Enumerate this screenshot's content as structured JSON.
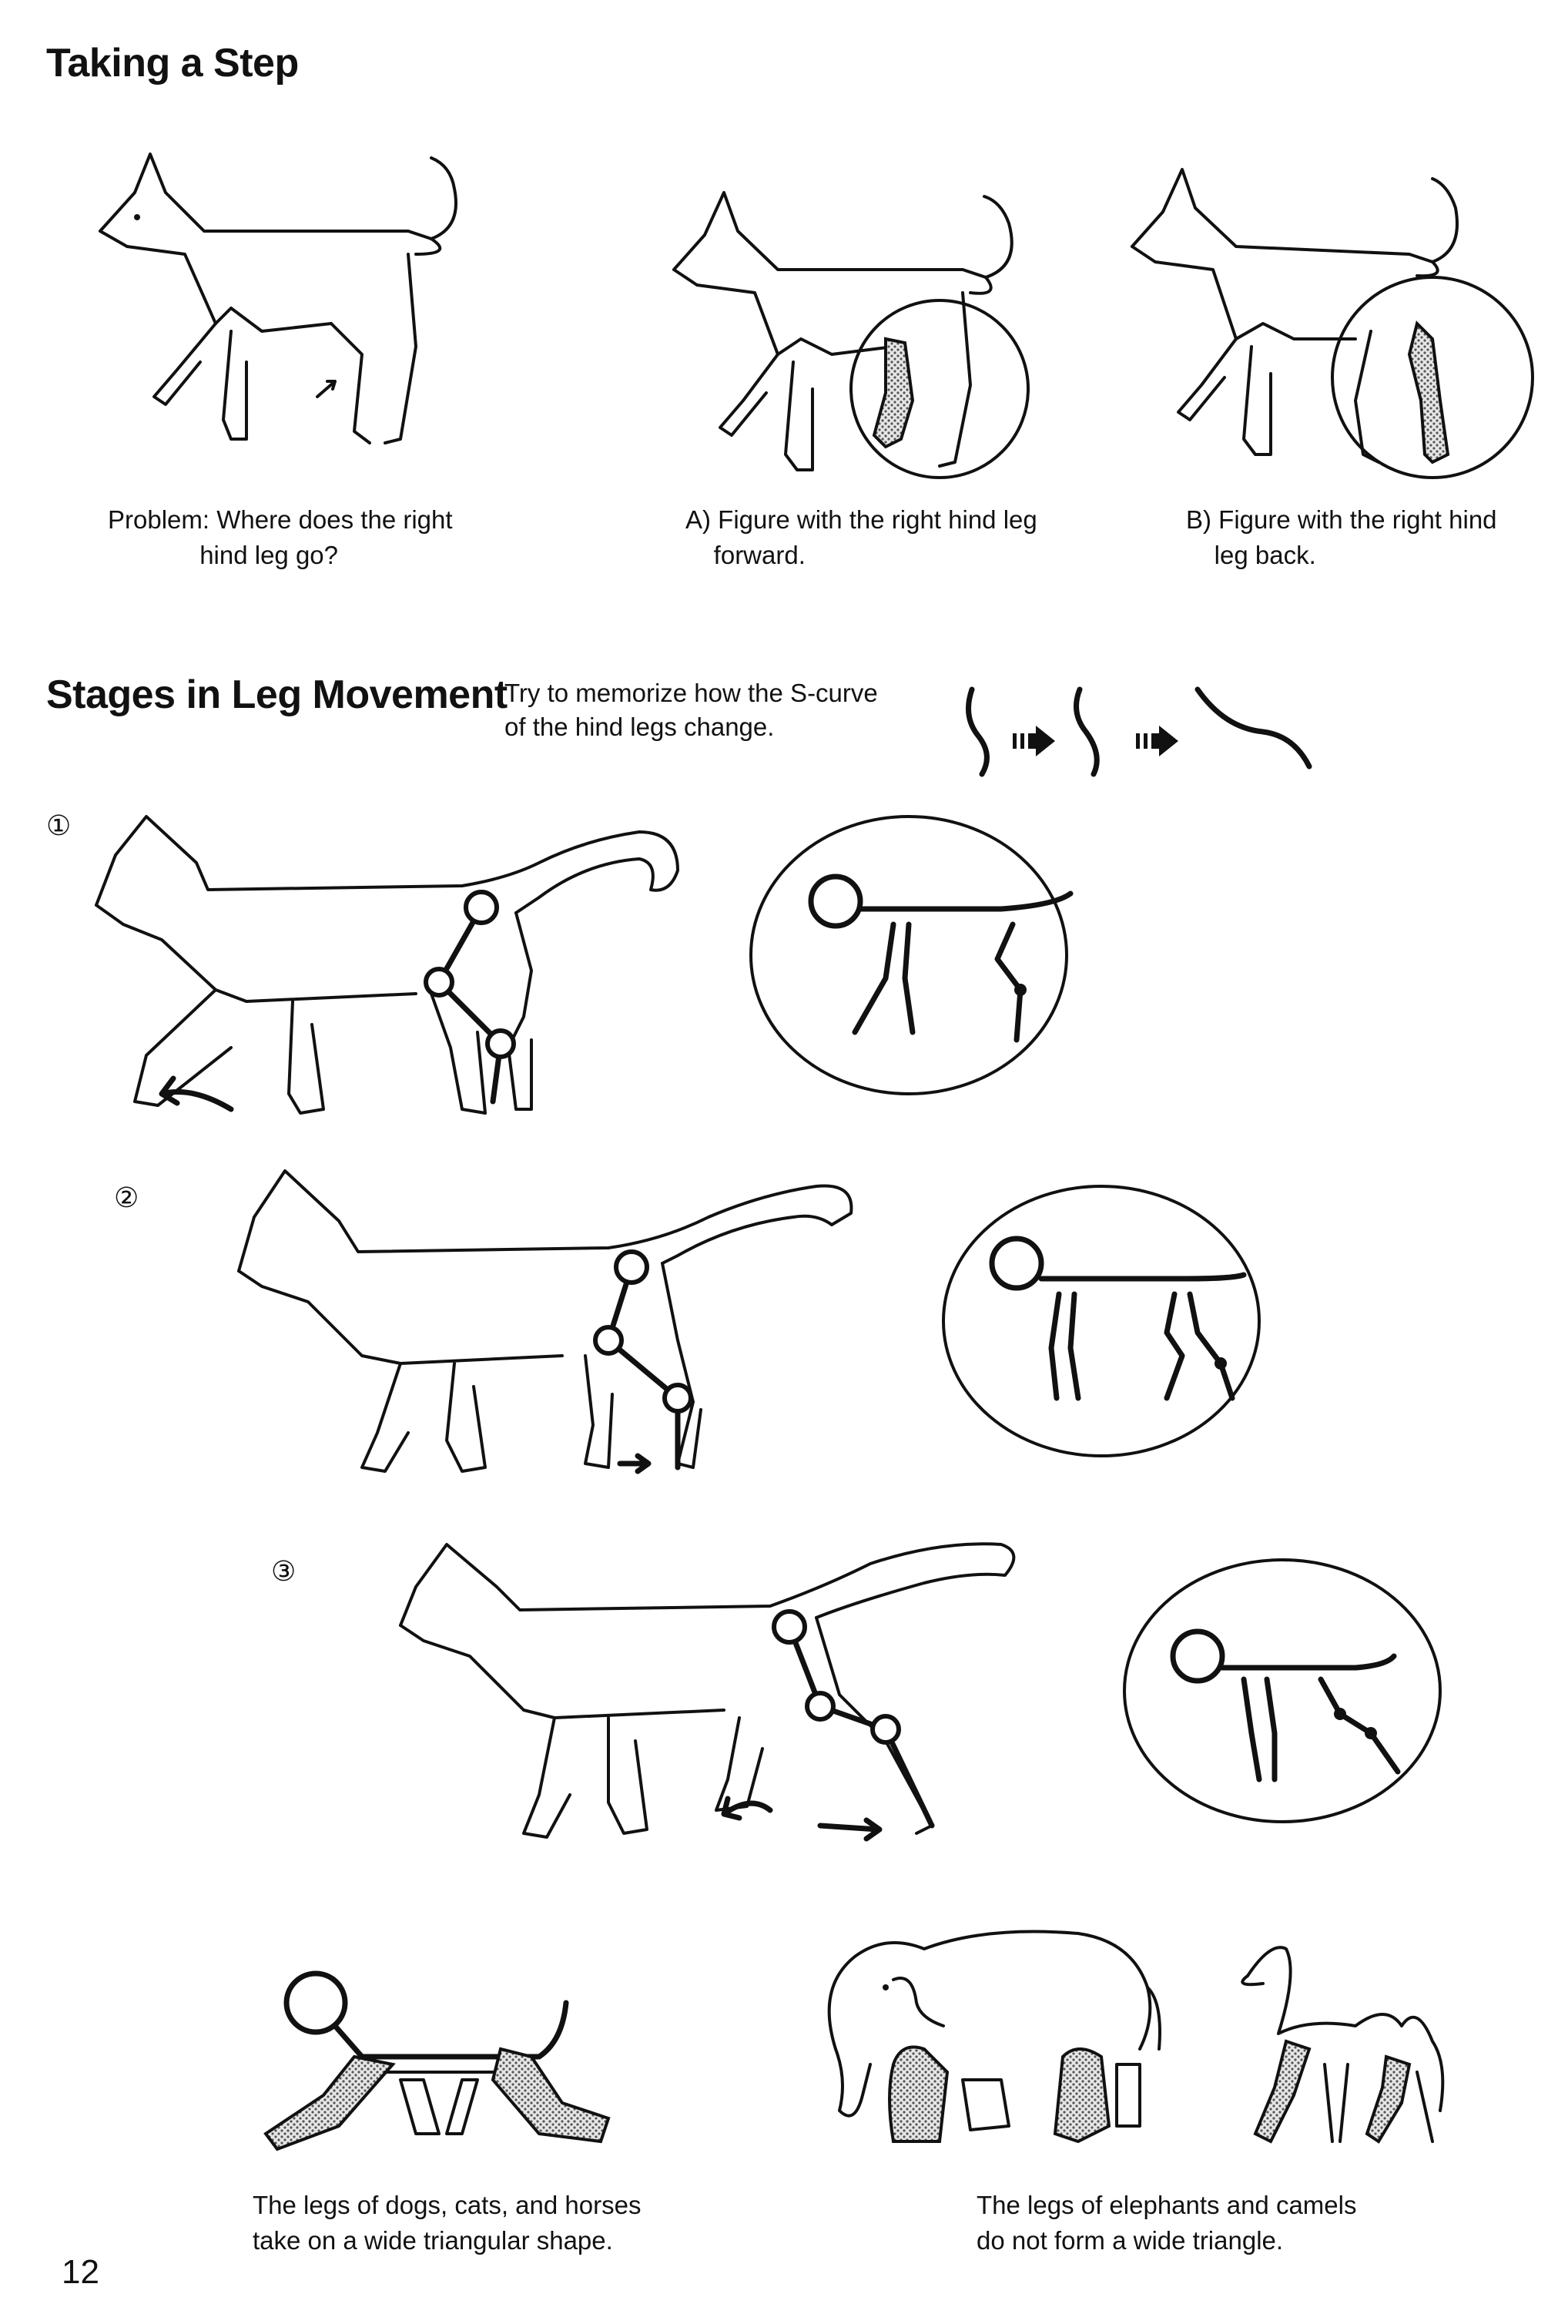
{
  "page": {
    "title": "Taking a Step",
    "section_title": "Stages in Leg Movement",
    "page_number": "12"
  },
  "captions": {
    "problem": "Problem: Where does the right\n             hind leg go?",
    "a": "A) Figure with the right hind leg\n    forward.",
    "b": "B) Figure with the right hind\n    leg back.",
    "instruction": "Try to memorize how the S-curve\nof the hind legs change.",
    "dogs_cats": "The legs of dogs, cats, and horses\ntake on a wide triangular shape.",
    "elephants": "The legs of elephants and camels\ndo not form a wide triangle."
  },
  "stages": [
    "①",
    "②",
    "③"
  ]
}
